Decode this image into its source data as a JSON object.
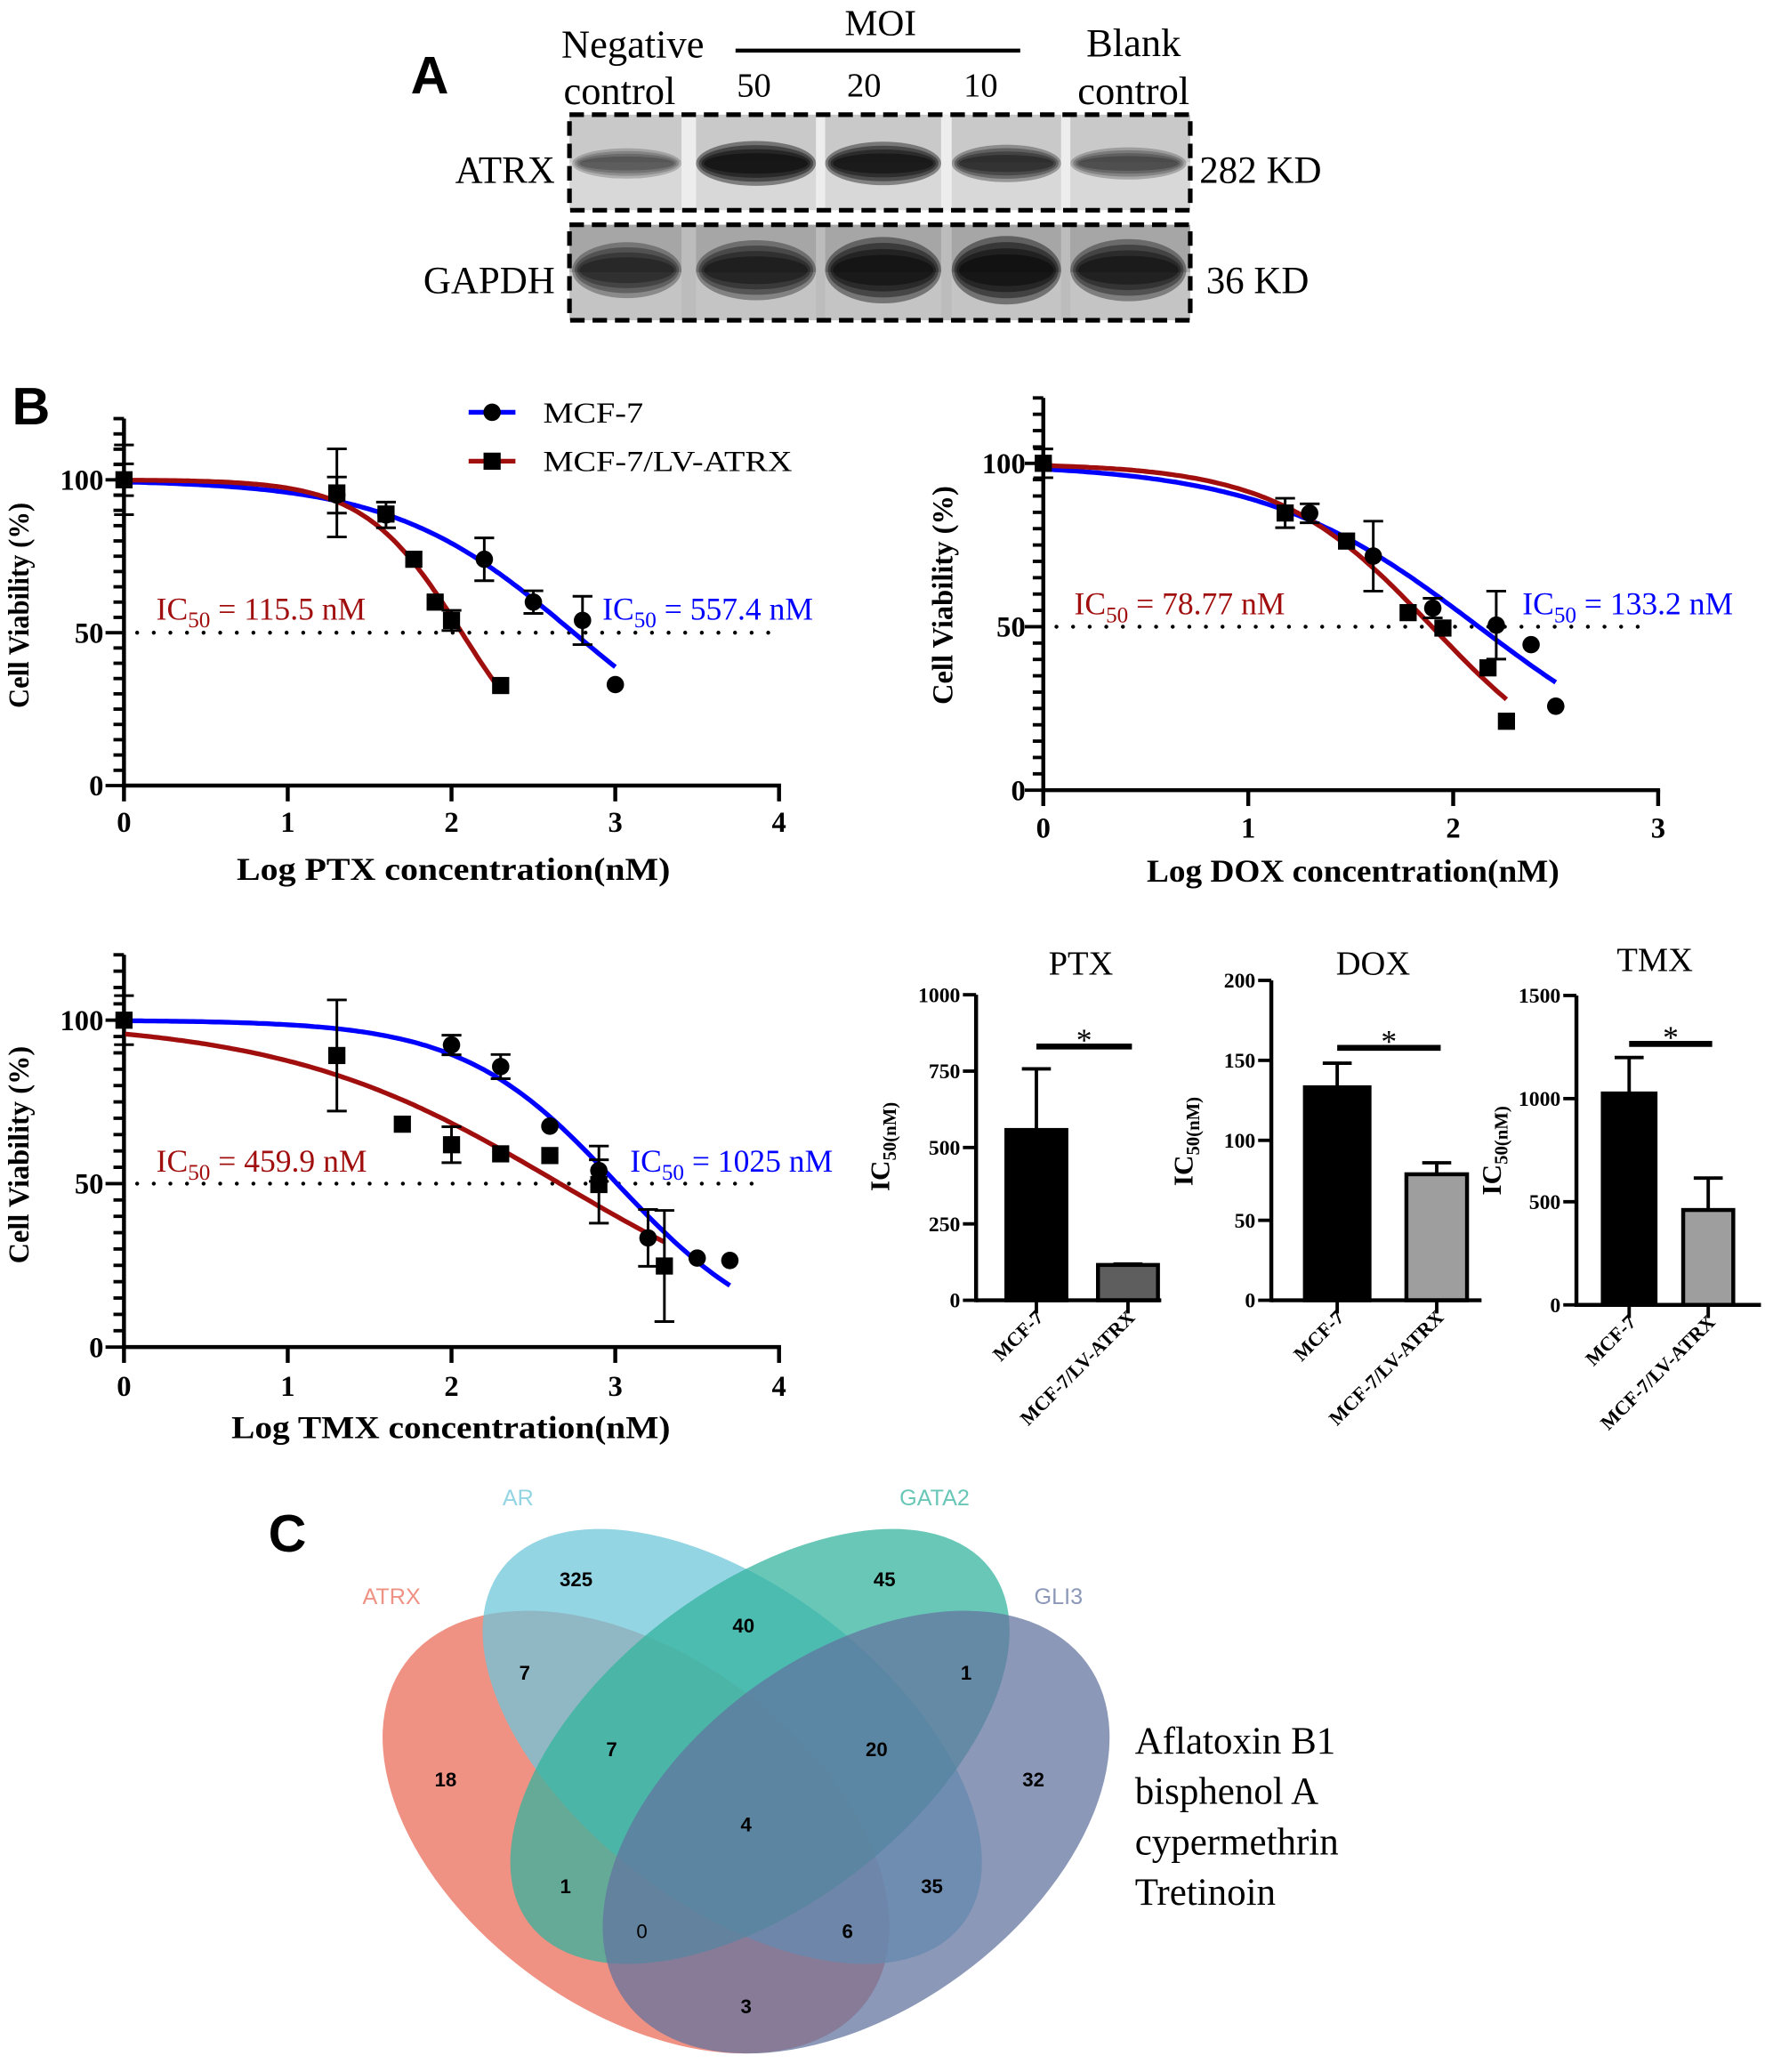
{
  "panel_labels": {
    "a": "A",
    "b": "B",
    "c": "C"
  },
  "western_blot": {
    "header": {
      "negative_control": [
        "Negative",
        "control"
      ],
      "moi_label": "MOI",
      "moi_values": [
        "50",
        "20",
        "10"
      ],
      "blank_control": [
        "Blank",
        "control"
      ]
    },
    "rows": [
      {
        "protein": "ATRX",
        "molecular_weight": "282 KD",
        "relative_band_intensity": [
          0.45,
          1.0,
          0.95,
          0.72,
          0.52
        ]
      },
      {
        "protein": "GAPDH",
        "molecular_weight": "36 KD",
        "relative_band_intensity": [
          0.7,
          0.8,
          0.95,
          1.0,
          0.85
        ]
      }
    ]
  },
  "chart_data": [
    {
      "type": "line",
      "title": "",
      "xlabel": "Log PTX concentration(nM)",
      "ylabel": "Cell Viability (%)",
      "xlim": [
        0,
        4
      ],
      "ylim": [
        0,
        120
      ],
      "xticks": [
        0,
        1,
        2,
        3,
        4
      ],
      "yticks": [
        0,
        50,
        100
      ],
      "yminor_step": 5,
      "grid": false,
      "reference_line": {
        "y": 50,
        "style": "dotted"
      },
      "legend": {
        "position": "top-right"
      },
      "series": [
        {
          "name": "MCF-7",
          "color": "#0000FF",
          "marker": "circle",
          "points": [
            {
              "x": 0,
              "y": 100,
              "err": 5.2
            },
            {
              "x": 1.3,
              "y": 95,
              "err": 5.9
            },
            {
              "x": 1.6,
              "y": 88.5,
              "err": 4.2
            },
            {
              "x": 2.2,
              "y": 74,
              "err": 7
            },
            {
              "x": 2.5,
              "y": 60,
              "err": 3.7
            },
            {
              "x": 2.8,
              "y": 54,
              "err": 7.9
            },
            {
              "x": 3.0,
              "y": 33,
              "err": 0
            }
          ],
          "fit": {
            "model": "sigmoidal",
            "top": 100,
            "bottom": 0,
            "log_ic50": 2.746,
            "hill_slope": 0.78,
            "x_range": [
              0,
              3.0
            ]
          },
          "ic50_label": {
            "main": "IC",
            "sub": "50",
            "rest": " = 557.4 nM"
          }
        },
        {
          "name": "MCF-7/LV-ATRX",
          "color": "#A10E0E",
          "marker": "square",
          "points": [
            {
              "x": 0,
              "y": 100,
              "err": 11.4
            },
            {
              "x": 1.3,
              "y": 95.7,
              "err": 14.4
            },
            {
              "x": 1.6,
              "y": 88.8,
              "err": 0
            },
            {
              "x": 1.77,
              "y": 74,
              "err": 0
            },
            {
              "x": 1.9,
              "y": 60,
              "err": 0
            },
            {
              "x": 2.0,
              "y": 54,
              "err": 3.3
            },
            {
              "x": 2.3,
              "y": 32.7,
              "err": 0
            }
          ],
          "fit": {
            "model": "sigmoidal",
            "top": 100,
            "bottom": 0,
            "log_ic50": 2.063,
            "hill_slope": 1.46,
            "x_range": [
              0,
              2.3
            ]
          },
          "ic50_label": {
            "main": "IC",
            "sub": "50",
            "rest": " = 115.5 nM"
          }
        }
      ]
    },
    {
      "type": "line",
      "title": "",
      "xlabel": "Log DOX concentration(nM)",
      "ylabel": "Cell Viability (%)",
      "xlim": [
        0,
        3
      ],
      "ylim": [
        0,
        120
      ],
      "xticks": [
        0,
        1,
        2,
        3
      ],
      "yticks": [
        0,
        50,
        100
      ],
      "yminor_step": 5,
      "grid": false,
      "reference_line": {
        "y": 50,
        "style": "dotted"
      },
      "series": [
        {
          "name": "MCF-7",
          "color": "#0000FF",
          "marker": "circle",
          "points": [
            {
              "x": 0,
              "y": 100,
              "err": 4.4
            },
            {
              "x": 1.3,
              "y": 84.7,
              "err": 2.9
            },
            {
              "x": 1.61,
              "y": 71.6,
              "err": 10.7
            },
            {
              "x": 1.9,
              "y": 55.7,
              "err": 3.0
            },
            {
              "x": 2.21,
              "y": 50.5,
              "err": 10.4
            },
            {
              "x": 2.38,
              "y": 44.5,
              "err": 0
            },
            {
              "x": 2.5,
              "y": 25.7,
              "err": 0
            }
          ],
          "fit": {
            "model": "sigmoidal",
            "top": 100,
            "bottom": 0,
            "log_ic50": 2.1245,
            "hill_slope": 0.82,
            "x_range": [
              0,
              2.5
            ]
          },
          "ic50_label": {
            "main": "IC",
            "sub": "50",
            "rest": " = 133.2 nM"
          }
        },
        {
          "name": "MCF-7/LV-ATRX",
          "color": "#A10E0E",
          "marker": "square",
          "points": [
            {
              "x": 0,
              "y": 100,
              "err": 0
            },
            {
              "x": 1.18,
              "y": 84.8,
              "err": 4.5
            },
            {
              "x": 1.48,
              "y": 76.2,
              "err": 0
            },
            {
              "x": 1.78,
              "y": 54.3,
              "err": 0
            },
            {
              "x": 1.95,
              "y": 49.6,
              "err": 0
            },
            {
              "x": 2.17,
              "y": 37.4,
              "err": 0
            },
            {
              "x": 2.26,
              "y": 21.1,
              "err": 0
            }
          ],
          "fit": {
            "model": "sigmoidal",
            "top": 100,
            "bottom": 0,
            "log_ic50": 1.8964,
            "hill_slope": 1.14,
            "x_range": [
              0,
              2.26
            ]
          },
          "ic50_label": {
            "main": "IC",
            "sub": "50",
            "rest": " = 78.77 nM"
          }
        }
      ]
    },
    {
      "type": "line",
      "title": "",
      "xlabel": "Log TMX concentration(nM)",
      "ylabel": "Cell Viability (%)",
      "xlim": [
        0,
        4
      ],
      "ylim": [
        0,
        120
      ],
      "xticks": [
        0,
        1,
        2,
        3,
        4
      ],
      "yticks": [
        0,
        50,
        100
      ],
      "yminor_step": 5,
      "grid": false,
      "reference_line": {
        "y": 50,
        "style": "dotted"
      },
      "series": [
        {
          "name": "MCF-7",
          "color": "#0000FF",
          "marker": "circle",
          "points": [
            {
              "x": 0,
              "y": 100,
              "err": 7.5
            },
            {
              "x": 2.0,
              "y": 92.4,
              "err": 3.0
            },
            {
              "x": 2.3,
              "y": 85.8,
              "err": 3.7
            },
            {
              "x": 2.6,
              "y": 67.6,
              "err": 0
            },
            {
              "x": 2.9,
              "y": 54,
              "err": 3.3
            },
            {
              "x": 3.2,
              "y": 33.4,
              "err": 8.7
            },
            {
              "x": 3.5,
              "y": 27.2,
              "err": 0
            },
            {
              "x": 3.7,
              "y": 26.5,
              "err": 0
            }
          ],
          "fit": {
            "model": "sigmoidal",
            "top": 100,
            "bottom": 0,
            "log_ic50": 3.0107,
            "hill_slope": 0.92,
            "x_range": [
              0,
              3.7
            ]
          },
          "ic50_label": {
            "main": "IC",
            "sub": "50",
            "rest": " = 1025 nM"
          }
        },
        {
          "name": "MCF-7/LV-ATRX",
          "color": "#A10E0E",
          "marker": "square",
          "points": [
            {
              "x": 0,
              "y": 100,
              "err": 0
            },
            {
              "x": 1.3,
              "y": 89.2,
              "err": 17
            },
            {
              "x": 1.7,
              "y": 68.2,
              "err": 0
            },
            {
              "x": 2.0,
              "y": 61.9,
              "err": 5.5
            },
            {
              "x": 2.3,
              "y": 59.1,
              "err": 0
            },
            {
              "x": 2.6,
              "y": 58.6,
              "err": 0
            },
            {
              "x": 2.9,
              "y": 49.7,
              "err": 11.8
            },
            {
              "x": 3.3,
              "y": 24.8,
              "err": 17
            }
          ],
          "fit": {
            "model": "sigmoidal",
            "top": 100,
            "bottom": 0,
            "log_ic50": 2.6627,
            "hill_slope": 0.51,
            "x_range": [
              0,
              3.3
            ]
          },
          "ic50_label": {
            "main": "IC",
            "sub": "50",
            "rest": " = 459.9 nM"
          }
        }
      ]
    },
    {
      "type": "bar",
      "title": "PTX",
      "ylabel": {
        "main": "IC",
        "sub": "50(nM)"
      },
      "categories": [
        "MCF-7",
        "MCF-7/LV-ATRX"
      ],
      "values": [
        557.4,
        115.5
      ],
      "errors": [
        200,
        3
      ],
      "colors": [
        "#000000",
        "#5E5E5E"
      ],
      "ylim": [
        0,
        1000
      ],
      "yticks": [
        0,
        250,
        500,
        750,
        1000
      ],
      "significance": {
        "between": [
          0,
          1
        ],
        "label": "*"
      }
    },
    {
      "type": "bar",
      "title": "DOX",
      "ylabel": {
        "main": "IC",
        "sub": "50(nM)"
      },
      "categories": [
        "MCF-7",
        "MCF-7/LV-ATRX"
      ],
      "values": [
        133.2,
        78.77
      ],
      "errors": [
        15,
        7.2
      ],
      "colors": [
        "#000000",
        "#9E9E9E"
      ],
      "ylim": [
        0,
        200
      ],
      "yticks": [
        0,
        50,
        100,
        150,
        200
      ],
      "significance": {
        "between": [
          0,
          1
        ],
        "label": "*"
      }
    },
    {
      "type": "bar",
      "title": "TMX",
      "ylabel": {
        "main": "IC",
        "sub": "50(nM)"
      },
      "categories": [
        "MCF-7",
        "MCF-7/LV-ATRX"
      ],
      "values": [
        1025,
        459.9
      ],
      "errors": [
        174,
        155
      ],
      "colors": [
        "#000000",
        "#9E9E9E"
      ],
      "ylim": [
        0,
        1500
      ],
      "yticks": [
        0,
        500,
        1000,
        1500
      ],
      "significance": {
        "between": [
          0,
          1
        ],
        "label": "*"
      }
    },
    {
      "type": "venn",
      "sets": [
        {
          "name": "ATRX",
          "color": "#EA6A58"
        },
        {
          "name": "AR",
          "color": "#6EC7DB"
        },
        {
          "name": "GATA2",
          "color": "#33B39E"
        },
        {
          "name": "GLI3",
          "color": "#63749F"
        }
      ],
      "regions": [
        {
          "sets": [
            "ATRX"
          ],
          "count": 18
        },
        {
          "sets": [
            "AR"
          ],
          "count": 325
        },
        {
          "sets": [
            "GATA2"
          ],
          "count": 45
        },
        {
          "sets": [
            "GLI3"
          ],
          "count": 32
        },
        {
          "sets": [
            "ATRX",
            "AR"
          ],
          "count": 7
        },
        {
          "sets": [
            "AR",
            "GATA2"
          ],
          "count": 40
        },
        {
          "sets": [
            "GATA2",
            "GLI3"
          ],
          "count": 1
        },
        {
          "sets": [
            "ATRX",
            "AR",
            "GATA2"
          ],
          "count": 7
        },
        {
          "sets": [
            "AR",
            "GATA2",
            "GLI3"
          ],
          "count": 20
        },
        {
          "sets": [
            "ATRX",
            "AR",
            "GATA2",
            "GLI3"
          ],
          "count": 4
        },
        {
          "sets": [
            "ATRX",
            "GATA2"
          ],
          "count": 1
        },
        {
          "sets": [
            "AR",
            "GLI3"
          ],
          "count": 35
        },
        {
          "sets": [
            "ATRX",
            "GATA2",
            "GLI3"
          ],
          "count": 0
        },
        {
          "sets": [
            "ATRX",
            "AR",
            "GLI3"
          ],
          "count": 6
        },
        {
          "sets": [
            "ATRX",
            "GLI3"
          ],
          "count": 3
        }
      ],
      "side_list": [
        "Aflatoxin B1",
        "bisphenol A",
        "cypermethrin",
        "Tretinoin"
      ]
    }
  ]
}
